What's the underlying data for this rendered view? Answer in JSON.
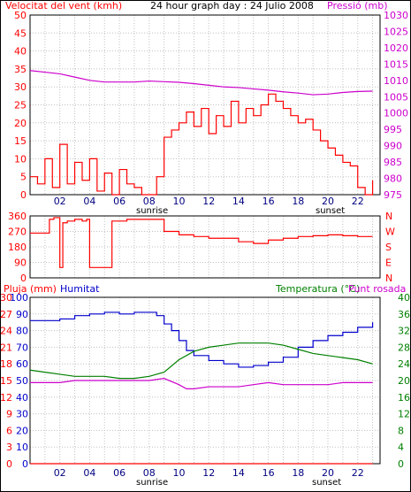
{
  "panel1": {
    "title_left": "Velocitat del vent (kmh)",
    "title_center": "24 hour graph day : 24 Julio 2008",
    "title_right": "Pressió (mb)",
    "left_ticks": [
      "0",
      "5",
      "10",
      "15",
      "20",
      "25",
      "30",
      "35",
      "40",
      "45",
      "50"
    ],
    "right_ticks": [
      "975",
      "980",
      "985",
      "990",
      "995",
      "1000",
      "1005",
      "1010",
      "1015",
      "1020",
      "1025",
      "1030"
    ],
    "x_ticks": [
      "02",
      "04",
      "06",
      "08",
      "10",
      "12",
      "14",
      "16",
      "18",
      "20",
      "22"
    ],
    "sunrise_label": "sunrise",
    "sunset_label": "sunset"
  },
  "panel2": {
    "left_ticks": [
      "0",
      "90",
      "180",
      "270",
      "360"
    ],
    "right_ticks": [
      "N",
      "E",
      "S",
      "W",
      "N"
    ]
  },
  "panel3": {
    "title_left": "Pluja (mm)",
    "title_hum": "Humitat",
    "title_right": "Temperatura (°C)",
    "title_dew": "Punt rosada",
    "rain_ticks": [
      "0",
      "3",
      "6",
      "9",
      "12",
      "15",
      "18",
      "21",
      "24",
      "27",
      "30"
    ],
    "hum_ticks": [
      "0",
      "10",
      "20",
      "30",
      "40",
      "50",
      "60",
      "70",
      "80",
      "90",
      "100"
    ],
    "temp_ticks": [
      "0",
      "4",
      "8",
      "12",
      "16",
      "20",
      "24",
      "28",
      "32",
      "36",
      "40"
    ],
    "x_ticks": [
      "02",
      "04",
      "06",
      "08",
      "10",
      "12",
      "14",
      "16",
      "18",
      "20",
      "22"
    ],
    "sunrise_label": "sunrise",
    "sunset_label": "sunset"
  },
  "colors": {
    "gust": "#ff0000",
    "wind_avg": "#008000",
    "wind_dir_avg": "#0000cc",
    "pressure": "#cc00cc",
    "humidity": "#0000cc",
    "temperature": "#008000",
    "dew_point": "#cc00cc",
    "rain": "#ff0000",
    "grid": "#c0c0c0"
  },
  "chart_data": [
    {
      "type": "line",
      "title": "24 hour graph day : 24 Julio 2008",
      "x_unit": "hour",
      "ylim_left": [
        0,
        50
      ],
      "ylim_right": [
        975,
        1030
      ],
      "series": [
        {
          "name": "Velocitat del vent (kmh)",
          "axis": "left",
          "x": [
            0,
            0.5,
            1,
            1.5,
            2,
            2.5,
            3,
            3.5,
            4,
            4.5,
            5,
            5.5,
            6,
            6.5,
            7,
            7.5,
            8,
            8.5,
            9,
            9.5,
            10,
            10.5,
            11,
            11.5,
            12,
            12.5,
            13,
            13.5,
            14,
            14.5,
            15,
            15.5,
            16,
            16.5,
            17,
            17.5,
            18,
            18.5,
            19,
            19.5,
            20,
            20.5,
            21,
            21.5,
            22,
            22.5,
            23
          ],
          "values": [
            5,
            3,
            10,
            2,
            14,
            3,
            9,
            4,
            10,
            1,
            6,
            0,
            7,
            3,
            2,
            0,
            0,
            5,
            16,
            18,
            20,
            23,
            19,
            24,
            17,
            22,
            19,
            26,
            20,
            24,
            22,
            25,
            28,
            26,
            24,
            22,
            20,
            21,
            18,
            15,
            13,
            11,
            9,
            8,
            2,
            0,
            4
          ]
        },
        {
          "name": "Pressió (mb)",
          "axis": "right",
          "x": [
            0,
            1,
            2,
            3,
            4,
            5,
            6,
            7,
            8,
            9,
            10,
            11,
            12,
            13,
            14,
            15,
            16,
            17,
            18,
            19,
            20,
            21,
            22,
            23
          ],
          "values": [
            1013,
            1012.5,
            1012,
            1011,
            1010,
            1009.5,
            1009.5,
            1009.5,
            1009.8,
            1009.6,
            1009.4,
            1009,
            1008.5,
            1008,
            1007.8,
            1007.4,
            1007,
            1006.5,
            1006.1,
            1005.6,
            1005.8,
            1006.3,
            1006.6,
            1006.7
          ]
        }
      ]
    },
    {
      "type": "line",
      "ylim": [
        0,
        360
      ],
      "series": [
        {
          "x": [
            0,
            1,
            1.3,
            1.6,
            2,
            2.2,
            2.5,
            3,
            3.5,
            3.8,
            4,
            4.5,
            5,
            5.5,
            6,
            6.5,
            7,
            8,
            8.5,
            9,
            10,
            11,
            12,
            13,
            14,
            15,
            16,
            17,
            18,
            19,
            20,
            21,
            22,
            23
          ],
          "values": [
            260,
            260,
            340,
            350,
            60,
            320,
            330,
            340,
            330,
            340,
            60,
            60,
            60,
            330,
            330,
            340,
            340,
            340,
            340,
            270,
            250,
            240,
            230,
            230,
            210,
            200,
            220,
            230,
            240,
            245,
            250,
            245,
            240,
            240
          ]
        }
      ]
    },
    {
      "type": "line",
      "ylim_rain": [
        0,
        30
      ],
      "ylim_hum": [
        0,
        100
      ],
      "ylim_temp": [
        0,
        40
      ],
      "series": [
        {
          "name": "Humitat",
          "axis": "hum",
          "x": [
            0,
            1,
            2,
            3,
            4,
            5,
            6,
            7,
            8,
            8.5,
            9,
            9.5,
            10,
            10.5,
            11,
            12,
            13,
            14,
            15,
            16,
            17,
            18,
            19,
            20,
            21,
            22,
            23
          ],
          "values": [
            86,
            86,
            87,
            89,
            90,
            91,
            90,
            91,
            91,
            89,
            84,
            80,
            74,
            68,
            65,
            62,
            60,
            58,
            59,
            61,
            64,
            70,
            74,
            77,
            79,
            82,
            85
          ]
        },
        {
          "name": "Temperatura (°C)",
          "axis": "temp",
          "x": [
            0,
            1,
            2,
            3,
            4,
            5,
            6,
            7,
            8,
            9,
            10,
            11,
            12,
            13,
            14,
            15,
            16,
            17,
            18,
            19,
            20,
            21,
            22,
            23
          ],
          "values": [
            22.5,
            22,
            21.5,
            21,
            21,
            21,
            20.5,
            20.5,
            21,
            22,
            25,
            27,
            28,
            28.5,
            29,
            29,
            29,
            28.5,
            27.5,
            26.5,
            26,
            25.5,
            25,
            24
          ]
        },
        {
          "name": "Punt rosada",
          "axis": "temp",
          "x": [
            0,
            1,
            2,
            3,
            4,
            5,
            6,
            7,
            8,
            9,
            10,
            10.5,
            11,
            12,
            13,
            14,
            15,
            16,
            17,
            18,
            19,
            20,
            21,
            22,
            23
          ],
          "values": [
            19.5,
            19.5,
            19.5,
            20,
            20,
            20,
            20,
            20,
            20,
            20.5,
            19,
            18,
            18,
            18.5,
            18.5,
            18.5,
            19,
            19.5,
            19,
            19,
            19,
            19,
            19.5,
            19.5,
            19.5
          ]
        },
        {
          "name": "Pluja (mm)",
          "axis": "rain",
          "x": [
            0,
            23
          ],
          "values": [
            0,
            0
          ]
        }
      ]
    }
  ]
}
